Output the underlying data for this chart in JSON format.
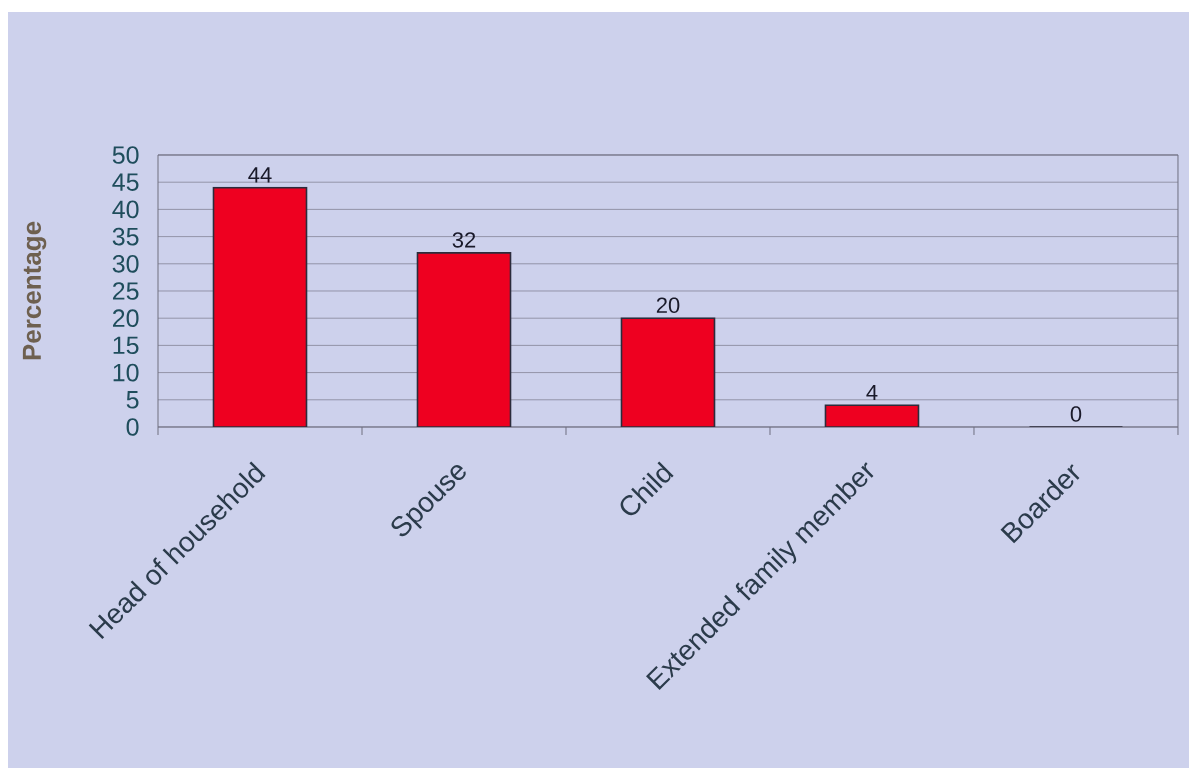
{
  "chart_data": {
    "type": "bar",
    "ylabel": "Percentage",
    "categories": [
      "Head of household",
      "Spouse",
      "Child",
      "Extended family member",
      "Boarder"
    ],
    "values": [
      44,
      32,
      20,
      4,
      0
    ],
    "color": "#ee0020",
    "ylim": [
      0,
      50
    ],
    "yticks": [
      0,
      5,
      10,
      15,
      20,
      25,
      30,
      35,
      40,
      45,
      50
    ],
    "grid": "y",
    "data_labels": true
  }
}
